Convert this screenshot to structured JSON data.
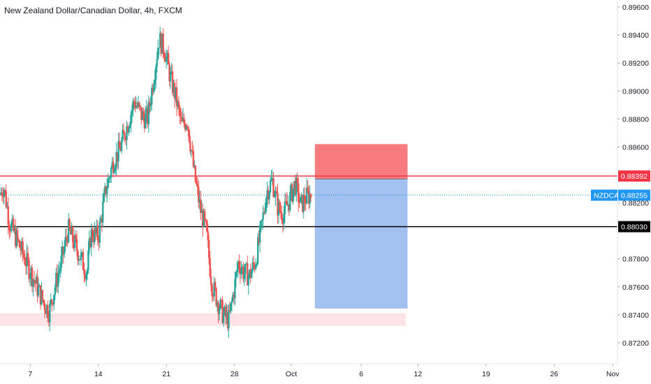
{
  "title": "New Zealand Dollar/Canadian Dollar, 4h, FXCM",
  "chart_data": {
    "type": "candlestick",
    "title": "New Zealand Dollar/Canadian Dollar, 4h, FXCM",
    "symbol": "NZDCAD",
    "y_ticks": [
      "0.89600",
      "0.89400",
      "0.89200",
      "0.89000",
      "0.88800",
      "0.88600",
      "0.88200",
      "0.87800",
      "0.87600",
      "0.87400",
      "0.87200"
    ],
    "ylim": [
      0.8705,
      0.8965
    ],
    "x_ticks": [
      {
        "label": "7",
        "t": 0.16
      },
      {
        "label": "14",
        "t": 0.52
      },
      {
        "label": "21",
        "t": 0.88
      },
      {
        "label": "28",
        "t": 1.24
      },
      {
        "label": "Oct",
        "t": 1.54
      },
      {
        "label": "6",
        "t": 1.91
      },
      {
        "label": "12",
        "t": 2.21
      },
      {
        "label": "19",
        "t": 2.57
      },
      {
        "label": "26",
        "t": 2.93
      },
      {
        "label": "Nov",
        "t": 3.24
      }
    ],
    "xlim": [
      0,
      3.265
    ],
    "up_color": "#26a69a",
    "down_color": "#ef5350",
    "price_path": [
      [
        0.0,
        0.8826
      ],
      [
        0.02,
        0.8832
      ],
      [
        0.05,
        0.8806
      ],
      [
        0.1,
        0.879
      ],
      [
        0.17,
        0.8768
      ],
      [
        0.23,
        0.8749
      ],
      [
        0.26,
        0.8742
      ],
      [
        0.29,
        0.876
      ],
      [
        0.33,
        0.8781
      ],
      [
        0.36,
        0.8801
      ],
      [
        0.41,
        0.8786
      ],
      [
        0.46,
        0.877
      ],
      [
        0.48,
        0.8798
      ],
      [
        0.52,
        0.8796
      ],
      [
        0.56,
        0.883
      ],
      [
        0.6,
        0.885
      ],
      [
        0.63,
        0.8857
      ],
      [
        0.67,
        0.8874
      ],
      [
        0.71,
        0.8893
      ],
      [
        0.75,
        0.8882
      ],
      [
        0.78,
        0.888
      ],
      [
        0.82,
        0.8917
      ],
      [
        0.84,
        0.8937
      ],
      [
        0.87,
        0.893
      ],
      [
        0.9,
        0.891
      ],
      [
        0.93,
        0.8895
      ],
      [
        0.96,
        0.8875
      ],
      [
        0.99,
        0.888
      ],
      [
        1.03,
        0.8838
      ],
      [
        1.06,
        0.8815
      ],
      [
        1.09,
        0.88
      ],
      [
        1.12,
        0.8762
      ],
      [
        1.15,
        0.875
      ],
      [
        1.18,
        0.874
      ],
      [
        1.21,
        0.8736
      ],
      [
        1.24,
        0.876
      ],
      [
        1.26,
        0.8778
      ],
      [
        1.29,
        0.877
      ],
      [
        1.32,
        0.8768
      ],
      [
        1.35,
        0.8778
      ],
      [
        1.38,
        0.88
      ],
      [
        1.41,
        0.8828
      ],
      [
        1.44,
        0.8836
      ],
      [
        1.47,
        0.8816
      ],
      [
        1.5,
        0.8812
      ],
      [
        1.53,
        0.8822
      ],
      [
        1.56,
        0.8834
      ],
      [
        1.59,
        0.8818
      ],
      [
        1.62,
        0.8824
      ],
      [
        1.645,
        0.8826
      ]
    ],
    "horizontal_lines": [
      {
        "price": 0.88392,
        "label": "0.88392",
        "color": "#f23645",
        "style": "solid"
      },
      {
        "price": 0.88255,
        "label": "NZDCAD",
        "value_label": "0.88255",
        "color": "#2196f3",
        "style": "dotted"
      },
      {
        "price": 0.8803,
        "label": "0.88030",
        "color": "#000000",
        "style": "solid"
      }
    ],
    "position": {
      "type": "short",
      "t_start": 1.665,
      "t_end": 2.155,
      "stop": 0.8862,
      "entry": 0.8837,
      "target": 0.87445,
      "stop_color": "#f77c80",
      "target_color": "#a3c1f0"
    },
    "support_zone": {
      "t_start": 0.0,
      "t_end": 2.145,
      "top": 0.8741,
      "bottom": 0.8732,
      "color": "#fde3e6"
    }
  }
}
